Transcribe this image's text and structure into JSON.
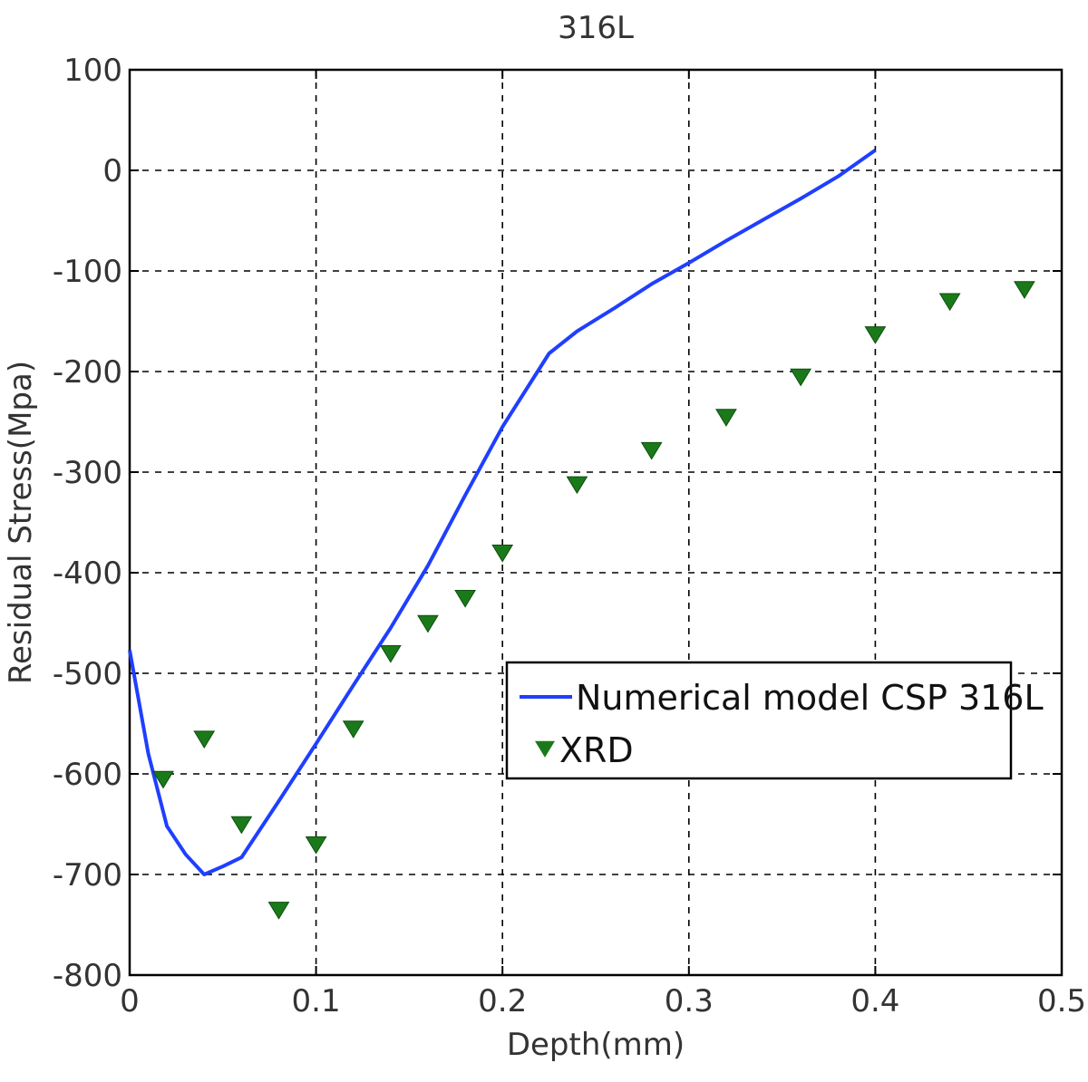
{
  "chart_data": {
    "type": "line",
    "title": "316L",
    "xlabel": "Depth(mm)",
    "ylabel": "Residual Stress(Mpa)",
    "xlim": [
      0,
      0.5
    ],
    "ylim": [
      -800,
      100
    ],
    "xticks": [
      0,
      0.1,
      0.2,
      0.3,
      0.4,
      0.5
    ],
    "xtick_labels": [
      "0",
      "0.1",
      "0.2",
      "0.3",
      "0.4",
      "0.5"
    ],
    "yticks": [
      100,
      0,
      -100,
      -200,
      -300,
      -400,
      -500,
      -600,
      -700,
      -800
    ],
    "ytick_labels": [
      "100",
      "0",
      "-100",
      "-200",
      "-300",
      "-400",
      "-500",
      "-600",
      "-700",
      "-800"
    ],
    "grid": true,
    "legend_position": "center-right",
    "series": [
      {
        "name": "Numerical model CSP 316L",
        "kind": "line",
        "color": "#1f3fff",
        "x": [
          0,
          0.01,
          0.02,
          0.03,
          0.04,
          0.05,
          0.06,
          0.08,
          0.1,
          0.12,
          0.14,
          0.16,
          0.18,
          0.2,
          0.225,
          0.24,
          0.26,
          0.28,
          0.3,
          0.32,
          0.34,
          0.36,
          0.38,
          0.4
        ],
        "y": [
          -477,
          -580,
          -652,
          -680,
          -700,
          -692,
          -683,
          -627,
          -570,
          -512,
          -455,
          -393,
          -323,
          -255,
          -182,
          -160,
          -137,
          -113,
          -92,
          -70,
          -49,
          -28,
          -6,
          20
        ]
      },
      {
        "name": "XRD",
        "kind": "scatter",
        "marker": "triangle-down",
        "color": "#1a7a1a",
        "x": [
          0.018,
          0.04,
          0.06,
          0.08,
          0.1,
          0.12,
          0.14,
          0.16,
          0.18,
          0.2,
          0.24,
          0.28,
          0.32,
          0.36,
          0.4,
          0.44,
          0.48
        ],
        "y": [
          -605,
          -565,
          -650,
          -735,
          -670,
          -555,
          -480,
          -450,
          -425,
          -380,
          -312,
          -278,
          -245,
          -205,
          -163,
          -130,
          -118
        ]
      }
    ]
  }
}
